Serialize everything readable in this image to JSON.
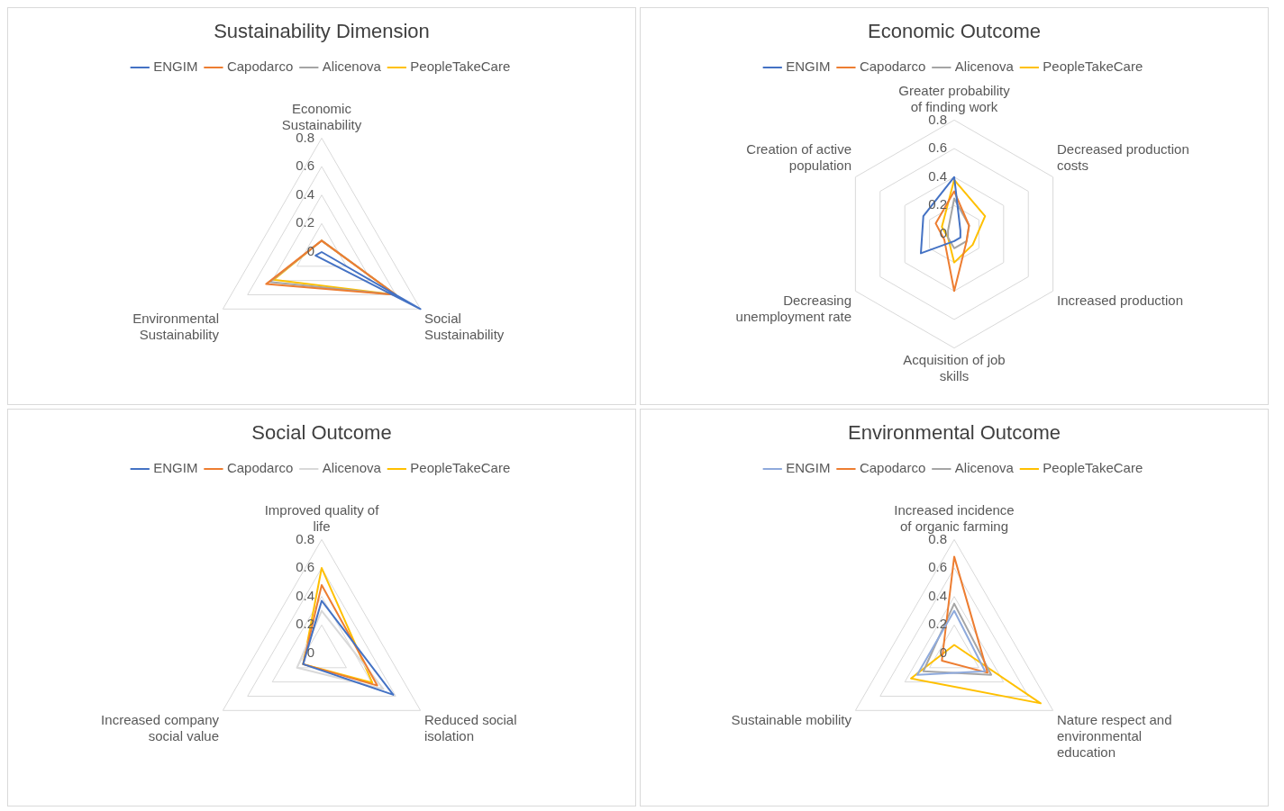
{
  "chart_data": [
    {
      "type": "radar",
      "title": "Sustainability Dimension",
      "categories": [
        "Economic Sustainability",
        "Social Sustainability",
        "Environmental Sustainability"
      ],
      "ylim": [
        0,
        0.8
      ],
      "yticks": [
        0,
        0.2,
        0.4,
        0.6,
        0.8
      ],
      "grid": true,
      "legend": "top",
      "marker": "none",
      "series": [
        {
          "name": "ENGIM",
          "color": "#4472c4",
          "values": [
            0,
            0.8,
            0.05
          ]
        },
        {
          "name": "Capodarco",
          "color": "#ed7d31",
          "values": [
            0.08,
            0.6,
            0.45
          ]
        },
        {
          "name": "Alicenova",
          "color": "#a5a5a5",
          "values": [
            0.08,
            0.6,
            0.42
          ]
        },
        {
          "name": "PeopleTakeCare",
          "color": "#ffc000",
          "values": [
            0.08,
            0.6,
            0.39
          ]
        }
      ]
    },
    {
      "type": "radar",
      "title": "Economic Outcome",
      "categories": [
        "Greater probability of finding work",
        "Decreased production costs",
        "Increased production",
        "Acquisition of job skills",
        "Decreasing unemployment rate",
        "Creation of active population"
      ],
      "ylim": [
        0,
        0.8
      ],
      "yticks": [
        0,
        0.2,
        0.4,
        0.6,
        0.8
      ],
      "grid": true,
      "legend": "top",
      "marker": "none",
      "series": [
        {
          "name": "ENGIM",
          "color": "#4472c4",
          "values": [
            0.4,
            0.05,
            0.05,
            0.05,
            0.27,
            0.25
          ]
        },
        {
          "name": "Capodarco",
          "color": "#ed7d31",
          "values": [
            0.3,
            0.12,
            0.1,
            0.4,
            0.08,
            0.15
          ]
        },
        {
          "name": "Alicenova",
          "color": "#a5a5a5",
          "values": [
            0.25,
            0.12,
            0.1,
            0.1,
            0.05,
            0.05
          ]
        },
        {
          "name": "PeopleTakeCare",
          "color": "#ffc000",
          "values": [
            0.38,
            0.25,
            0.15,
            0.2,
            0.05,
            0.1
          ]
        }
      ]
    },
    {
      "type": "radar",
      "title": "Social Outcome",
      "categories": [
        "Improved quality of life",
        "Reduced social isolation",
        "Increased company social value"
      ],
      "ylim": [
        0,
        0.8
      ],
      "yticks": [
        0,
        0.2,
        0.4,
        0.6,
        0.8
      ],
      "grid": true,
      "legend": "top",
      "marker": "none",
      "series": [
        {
          "name": "ENGIM",
          "color": "#4472c4",
          "values": [
            0.37,
            0.58,
            0.15
          ]
        },
        {
          "name": "Capodarco",
          "color": "#ed7d31",
          "values": [
            0.48,
            0.45,
            0.15
          ]
        },
        {
          "name": "Alicenova",
          "color": "#d9d9d9",
          "values": [
            0.3,
            0.5,
            0.2
          ]
        },
        {
          "name": "PeopleTakeCare",
          "color": "#ffc000",
          "values": [
            0.6,
            0.41,
            0.15
          ]
        }
      ]
    },
    {
      "type": "radar",
      "title": "Environmental Outcome",
      "categories": [
        "Increased incidence of organic farming",
        "Nature respect and environmental education",
        "Sustainable mobility"
      ],
      "ylim": [
        0,
        0.8
      ],
      "yticks": [
        0,
        0.2,
        0.4,
        0.6,
        0.8
      ],
      "grid": true,
      "legend": "top",
      "marker": "none",
      "series": [
        {
          "name": "ENGIM",
          "color": "#8faadc",
          "values": [
            0.3,
            0.25,
            0.3
          ]
        },
        {
          "name": "Capodarco",
          "color": "#ed7d31",
          "values": [
            0.68,
            0.27,
            0.1
          ]
        },
        {
          "name": "Alicenova",
          "color": "#a5a5a5",
          "values": [
            0.35,
            0.3,
            0.25
          ]
        },
        {
          "name": "PeopleTakeCare",
          "color": "#ffc000",
          "values": [
            0.06,
            0.7,
            0.35
          ]
        }
      ]
    }
  ]
}
